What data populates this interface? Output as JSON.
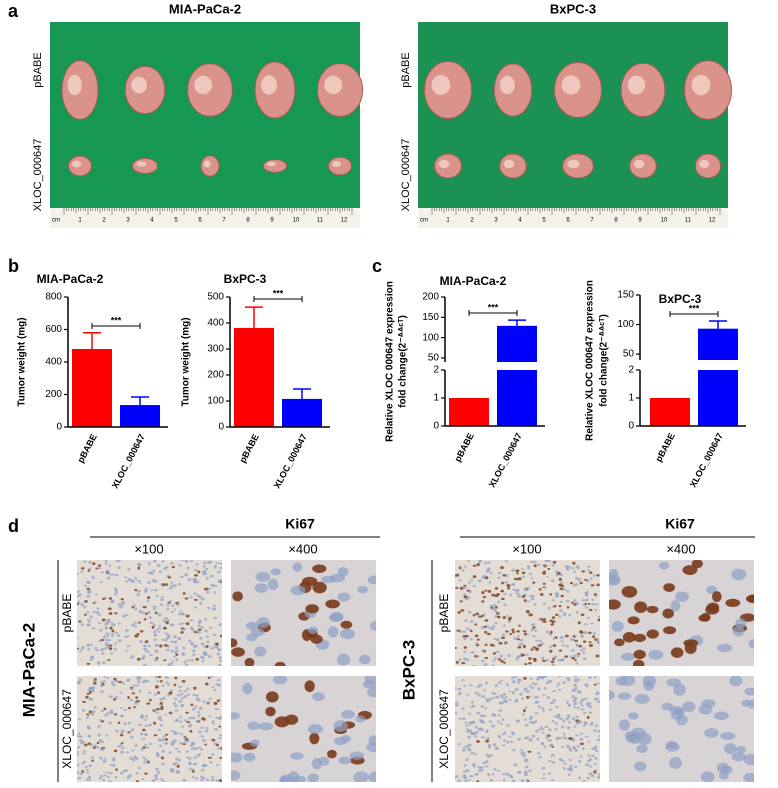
{
  "panel_labels": [
    "a",
    "b",
    "c",
    "d"
  ],
  "photos": [
    {
      "title": "MIA-PaCa-2",
      "rows": [
        "pBABE",
        "XLOC_000647"
      ]
    },
    {
      "title": "BxPC-3",
      "rows": [
        "pBABE",
        "XLOC_000647"
      ]
    }
  ],
  "ruler": [
    "cm",
    "1",
    "2",
    "3",
    "4",
    "5",
    "6",
    "7",
    "8",
    "9",
    "10",
    "11",
    "12"
  ],
  "chart_data": [
    {
      "type": "bar",
      "title": "MIA-PaCa-2",
      "ylabel": [
        "Tumor weight (mg)"
      ],
      "categories": [
        "pBABE",
        "XLOC_000647"
      ],
      "values": [
        480,
        135
      ],
      "errors": [
        100,
        50
      ],
      "colors": [
        "#ff0000",
        "#0000ff"
      ],
      "ylim": [
        0,
        800
      ],
      "yticks": [
        0,
        200,
        400,
        600,
        800
      ],
      "significance": "***"
    },
    {
      "type": "bar",
      "title": "BxPC-3",
      "ylabel": [
        "Tumor weight (mg)"
      ],
      "categories": [
        "pBABE",
        "XLOC_000647"
      ],
      "values": [
        381,
        108
      ],
      "errors": [
        80,
        38
      ],
      "colors": [
        "#ff0000",
        "#0000ff"
      ],
      "ylim": [
        0,
        500
      ],
      "yticks": [
        0,
        100,
        200,
        300,
        400,
        500
      ],
      "significance": "***"
    },
    {
      "type": "bar",
      "title": "MIA-PaCa-2",
      "ylabel": [
        "Relative XLOC 000647 expression",
        "fold change(2⁻ᐞᐞᶜᵀ)"
      ],
      "categories": [
        "pBABE",
        "XLOC_000647"
      ],
      "values": [
        1,
        129
      ],
      "errors": [
        0,
        14
      ],
      "colors": [
        "#ff0000",
        "#0000ff"
      ],
      "ylim": [
        0,
        200
      ],
      "ybreak": [
        2,
        40
      ],
      "yticks": [
        0,
        1,
        2,
        50,
        100,
        150,
        200
      ],
      "significance": "***"
    },
    {
      "type": "bar",
      "title": "BxPC-3",
      "ylabel": [
        "Relative XLOC 000647 expression",
        "fold change(2⁻ᐞᐞᶜᵀ)"
      ],
      "categories": [
        "pBABE",
        "XLOC_000647"
      ],
      "values": [
        1,
        93
      ],
      "errors": [
        0,
        13
      ],
      "colors": [
        "#ff0000",
        "#0000ff"
      ],
      "ylim": [
        0,
        150
      ],
      "ybreak": [
        2,
        40
      ],
      "yticks": [
        0,
        1,
        2,
        50,
        100,
        150
      ],
      "significance": "***"
    }
  ],
  "ihc": [
    {
      "cell_line": "MIA-PaCa-2",
      "marker": "Ki67",
      "magnifications": [
        "×100",
        "×400"
      ],
      "rows": [
        "pBABE",
        "XLOC_000647"
      ]
    },
    {
      "cell_line": "BxPC-3",
      "marker": "Ki67",
      "magnifications": [
        "×100",
        "×400"
      ],
      "rows": [
        "pBABE",
        "XLOC_000647"
      ]
    }
  ]
}
